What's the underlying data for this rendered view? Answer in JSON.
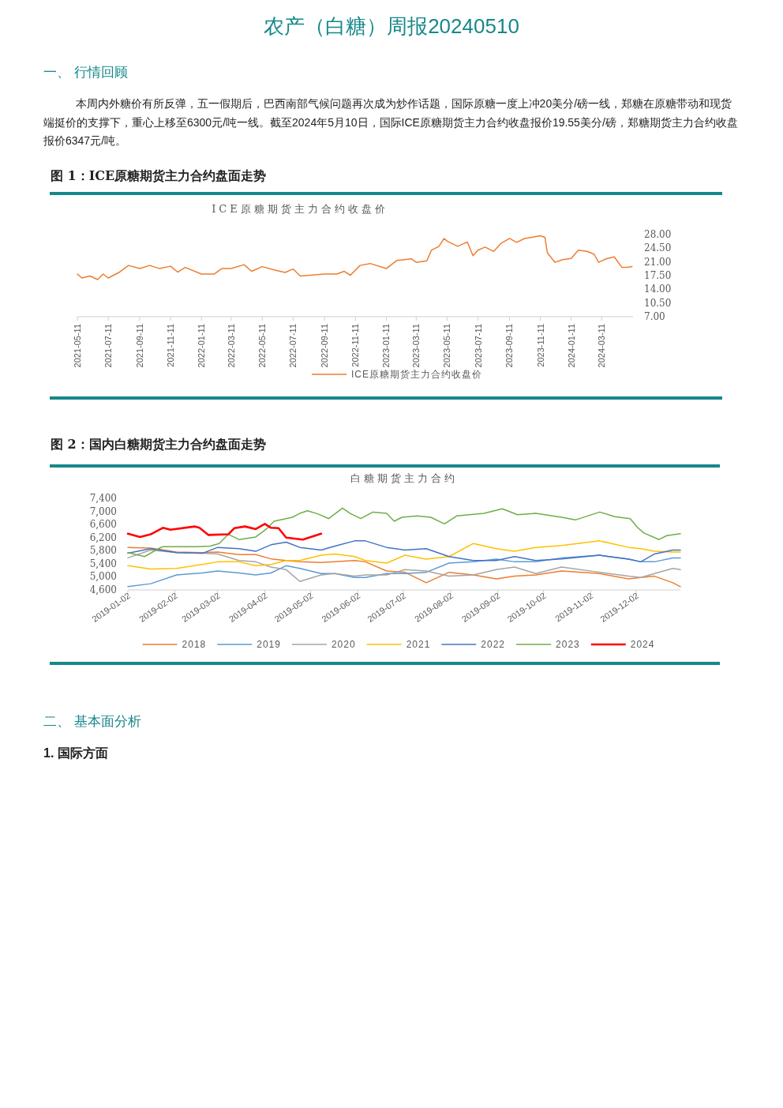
{
  "chart_data": [
    {
      "type": "line",
      "title": "图 1：ICE原糖期货主力合约盘面走势",
      "subtitle": "ICE原糖期货主力合约收盘价",
      "annotations": [
        "农产（白糖）周报20240510",
        "一、 行情回顾",
        "本周内外糖价有所反弹，五一假期后，巴西南部气候问题再次成为炒作话题，国际原糖一度上冲20美分/磅一线，郑糖在原糖带动和现货端挺价的支撑下，重心上移至6300元/吨一线。截至2024年5月10日，国际ICE原糖期货主力合约收盘报价19.55美分/磅，郑糖期货主力合约收盘报价6347元/吨。"
      ],
      "x": [
        "2021-05-11",
        "2021-05-20",
        "2021-06-05",
        "2021-06-20",
        "2021-07-01",
        "2021-07-11",
        "2021-08-01",
        "2021-08-20",
        "2021-09-11",
        "2021-10-01",
        "2021-10-20",
        "2021-11-11",
        "2021-11-25",
        "2021-12-10",
        "2022-01-11",
        "2022-02-05",
        "2022-02-20",
        "2022-03-11",
        "2022-04-05",
        "2022-04-20",
        "2022-05-11",
        "2022-06-05",
        "2022-06-25",
        "2022-07-11",
        "2022-07-25",
        "2022-09-11",
        "2022-10-05",
        "2022-10-20",
        "2022-11-01",
        "2022-11-20",
        "2022-12-10",
        "2023-01-11",
        "2023-02-01",
        "2023-03-01",
        "2023-03-11",
        "2023-04-01",
        "2023-04-10",
        "2023-04-25",
        "2023-05-05",
        "2023-05-11",
        "2023-06-01",
        "2023-06-20",
        "2023-07-01",
        "2023-07-11",
        "2023-07-25",
        "2023-08-11",
        "2023-08-25",
        "2023-09-11",
        "2023-09-25",
        "2023-10-11",
        "2023-10-25",
        "2023-11-11",
        "2023-11-20",
        "2023-11-25",
        "2023-12-10",
        "2023-12-25",
        "2024-01-11",
        "2024-01-25",
        "2024-02-11",
        "2024-02-25",
        "2024-03-05",
        "2024-03-20",
        "2024-04-05",
        "2024-04-20",
        "2024-05-01",
        "2024-05-10"
      ],
      "series": [
        {
          "name": "ICE原糖期货主力合约收盘价",
          "color": "#ed7d31",
          "values": [
            17.9,
            16.9,
            17.4,
            16.5,
            17.9,
            16.9,
            18.3,
            20.1,
            19.3,
            20.1,
            19.3,
            19.9,
            18.4,
            19.6,
            17.9,
            17.9,
            19.3,
            19.3,
            20.3,
            18.6,
            19.8,
            18.9,
            18.3,
            19.2,
            17.4,
            17.9,
            17.9,
            18.6,
            17.6,
            20.1,
            20.6,
            19.3,
            21.4,
            21.8,
            20.9,
            21.3,
            24.0,
            25.0,
            27.0,
            26.3,
            25.0,
            26.1,
            22.6,
            24.0,
            24.8,
            23.7,
            25.7,
            27.0,
            26.0,
            27.0,
            27.3,
            27.7,
            27.3,
            23.3,
            20.9,
            21.6,
            21.9,
            24.0,
            23.7,
            23.0,
            20.9,
            21.8,
            22.3,
            19.6,
            19.6,
            19.8
          ]
        }
      ],
      "xlim": [
        "2021-05-11",
        "2024-05-12"
      ],
      "ylim": [
        7,
        28
      ],
      "xticks": [
        "2021-05-11",
        "2021-07-11",
        "2021-09-11",
        "2021-11-11",
        "2022-01-11",
        "2022-03-11",
        "2022-05-11",
        "2022-07-11",
        "2022-09-11",
        "2022-11-11",
        "2023-01-11",
        "2023-03-11",
        "2023-05-11",
        "2023-07-11",
        "2023-09-11",
        "2023-11-11",
        "2024-01-11",
        "2024-03-11"
      ],
      "yticks": [
        {
          "value": 7,
          "label": "7.00"
        },
        {
          "value": 10.5,
          "label": "10.50"
        },
        {
          "value": 14,
          "label": "14.00"
        },
        {
          "value": 17.5,
          "label": "17.50"
        },
        {
          "value": 21,
          "label": "21.00"
        },
        {
          "value": 24.5,
          "label": "24.50"
        },
        {
          "value": 28,
          "label": "28.00"
        }
      ],
      "legend": "bottom"
    },
    {
      "type": "line",
      "title": "图 2：国内白糖期货主力合约盘面走势",
      "subtitle": "白糖期货主力合约",
      "annotations": [
        "二、 基本面分析",
        "1. 国际方面"
      ],
      "x": [
        "2019-01-02",
        "2019-01-17",
        "2019-02-03",
        "2019-02-20",
        "2019-03-02",
        "2019-03-16",
        "2019-03-27",
        "2019-04-06",
        "2019-04-16",
        "2019-04-25",
        "2019-05-09",
        "2019-05-18",
        "2019-05-31",
        "2019-06-07",
        "2019-06-21",
        "2019-07-03",
        "2019-07-17",
        "2019-08-01",
        "2019-08-17",
        "2019-09-01",
        "2019-09-13",
        "2019-09-27",
        "2019-10-14",
        "2019-11-08",
        "2019-11-27",
        "2019-12-05",
        "2019-12-14",
        "2019-12-26",
        "2019-12-31"
      ],
      "series": [
        {
          "name": "2018",
          "color": "#ed7d31",
          "values": [
            5900,
            5880,
            5760,
            5740,
            5760,
            5680,
            5680,
            5550,
            5500,
            5460,
            5440,
            5460,
            5500,
            5460,
            5180,
            5140,
            4820,
            5140,
            5060,
            4940,
            5020,
            5060,
            5180,
            5100,
            4940,
            4980,
            5020,
            4820,
            4700
          ]
        },
        {
          "name": "2019",
          "color": "#5b9bd5",
          "values": [
            4700,
            4790,
            5060,
            5120,
            5180,
            5120,
            5060,
            5120,
            5340,
            5260,
            5100,
            5100,
            4980,
            4980,
            5100,
            5100,
            5140,
            5420,
            5460,
            5540,
            5460,
            5460,
            5580,
            5660,
            5540,
            5460,
            5460,
            5580,
            5580
          ]
        },
        {
          "name": "2020",
          "color": "#a5a5a5",
          "values": [
            5580,
            5820,
            5740,
            5720,
            5700,
            5500,
            5460,
            5300,
            5220,
            4860,
            5060,
            5100,
            5020,
            5060,
            5060,
            5220,
            5180,
            5020,
            5060,
            5220,
            5300,
            5100,
            5300,
            5140,
            5020,
            4980,
            5100,
            5260,
            5220
          ]
        },
        {
          "name": "2021",
          "color": "#ffc000",
          "values": [
            5340,
            5240,
            5260,
            5380,
            5460,
            5460,
            5340,
            5380,
            5500,
            5500,
            5660,
            5700,
            5620,
            5500,
            5420,
            5660,
            5540,
            5620,
            6020,
            5860,
            5780,
            5900,
            5960,
            6100,
            5900,
            5860,
            5780,
            5760,
            5760
          ]
        },
        {
          "name": "2022",
          "color": "#4472c4",
          "values": [
            5720,
            5860,
            5740,
            5720,
            5900,
            5860,
            5780,
            5980,
            6060,
            5900,
            5820,
            5940,
            6100,
            6100,
            5900,
            5820,
            5860,
            5620,
            5500,
            5500,
            5620,
            5500,
            5550,
            5660,
            5540,
            5460,
            5700,
            5820,
            5820
          ]
        },
        {
          "name": "2023",
          "color": "#70ad47",
          "x": [
            "2019-01-02",
            "2019-01-13",
            "2019-01-22",
            "2019-01-25",
            "2019-02-15",
            "2019-02-25",
            "2019-03-03",
            "2019-03-09",
            "2019-03-16",
            "2019-03-27",
            "2019-04-03",
            "2019-04-08",
            "2019-04-20",
            "2019-04-25",
            "2019-04-30",
            "2019-05-07",
            "2019-05-14",
            "2019-05-23",
            "2019-05-28",
            "2019-06-04",
            "2019-06-12",
            "2019-06-21",
            "2019-06-26",
            "2019-07-01",
            "2019-07-11",
            "2019-07-20",
            "2019-07-29",
            "2019-08-06",
            "2019-08-24",
            "2019-09-05",
            "2019-09-15",
            "2019-09-27",
            "2019-10-14",
            "2019-10-23",
            "2019-11-08",
            "2019-11-18",
            "2019-11-28",
            "2019-12-03",
            "2019-12-07",
            "2019-12-17",
            "2019-12-22",
            "2019-12-31"
          ],
          "values": [
            5740,
            5620,
            5860,
            5920,
            5920,
            5940,
            6020,
            6300,
            6140,
            6220,
            6460,
            6700,
            6820,
            6940,
            7020,
            6920,
            6780,
            7100,
            6940,
            6780,
            6980,
            6940,
            6700,
            6820,
            6860,
            6820,
            6620,
            6860,
            6940,
            7080,
            6900,
            6940,
            6820,
            6740,
            6980,
            6840,
            6780,
            6500,
            6340,
            6140,
            6260,
            6320
          ]
        },
        {
          "name": "2024",
          "color": "#ff0000",
          "x": [
            "2019-01-02",
            "2019-01-10",
            "2019-01-17",
            "2019-01-25",
            "2019-01-30",
            "2019-02-15",
            "2019-02-18",
            "2019-02-24",
            "2019-03-09",
            "2019-03-13",
            "2019-03-20",
            "2019-03-27",
            "2019-04-02",
            "2019-04-06",
            "2019-04-11",
            "2019-04-16",
            "2019-04-27",
            "2019-05-09"
          ],
          "values": [
            6320,
            6220,
            6300,
            6500,
            6440,
            6540,
            6500,
            6280,
            6300,
            6490,
            6540,
            6460,
            6620,
            6500,
            6490,
            6200,
            6140,
            6320
          ]
        }
      ],
      "xlim": [
        "2019-01-02",
        "2019-12-31"
      ],
      "ylim": [
        4600,
        7400
      ],
      "xticks": [
        "2019-01-02",
        "2019-02-02",
        "2019-03-02",
        "2019-04-02",
        "2019-05-02",
        "2019-06-02",
        "2019-07-02",
        "2019-08-02",
        "2019-09-02",
        "2019-10-02",
        "2019-11-02",
        "2019-12-02"
      ],
      "yticks": [
        {
          "value": 4600,
          "label": "4,600"
        },
        {
          "value": 5000,
          "label": "5,000"
        },
        {
          "value": 5400,
          "label": "5,400"
        },
        {
          "value": 5800,
          "label": "5,800"
        },
        {
          "value": 6200,
          "label": "6,200"
        },
        {
          "value": 6600,
          "label": "6,600"
        },
        {
          "value": 7000,
          "label": "7,000"
        },
        {
          "value": 7400,
          "label": "7,400"
        }
      ],
      "legend": "bottom"
    }
  ]
}
